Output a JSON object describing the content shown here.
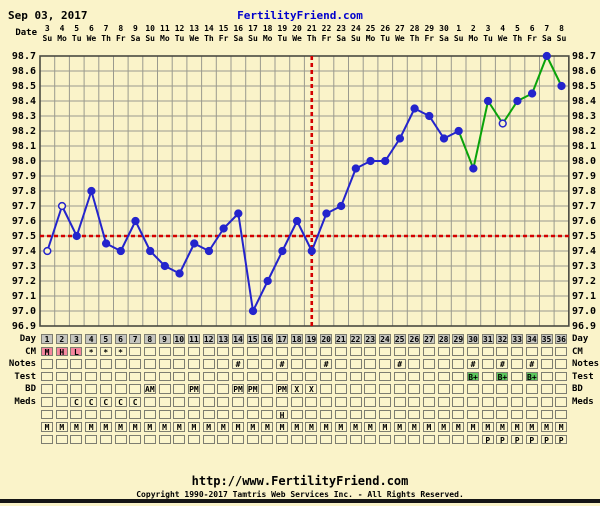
{
  "header": {
    "date": "Sep 03, 2017",
    "site": "FertilityFriend.com"
  },
  "labels": {
    "date_axis": "Date",
    "day_axis": "Day"
  },
  "colors": {
    "background": "#faf3c9",
    "grid": "#9a9a8e",
    "frame": "#4a4a42",
    "line_blue": "#2424cc",
    "line_green": "#0aa30a",
    "coverline_red": "#d40000",
    "title_blue": "#0000cc",
    "day_row_gray": "#c6c6c0",
    "cm_pink": "#f5879f",
    "test_green": "#5cc75c",
    "cell_cream": "#fbf5cc"
  },
  "chart_data": {
    "type": "line",
    "title": "Basal body temperature chart",
    "xlabel": "Cycle day",
    "ylabel": "Temperature (F)",
    "ylim": [
      96.9,
      98.7
    ],
    "ytick_step": 0.1,
    "yticks": [
      "98.7",
      "98.6",
      "98.5",
      "98.4",
      "98.3",
      "98.2",
      "98.1",
      "98.0",
      "97.9",
      "97.8",
      "97.7",
      "97.6",
      "97.5",
      "97.4",
      "97.3",
      "97.2",
      "97.1",
      "97.0",
      "96.9"
    ],
    "dates": [
      "3",
      "4",
      "5",
      "6",
      "7",
      "8",
      "9",
      "10",
      "11",
      "12",
      "13",
      "14",
      "15",
      "16",
      "17",
      "18",
      "19",
      "20",
      "21",
      "22",
      "23",
      "24",
      "25",
      "26",
      "27",
      "28",
      "29",
      "30",
      "1",
      "2",
      "3",
      "4",
      "5",
      "6",
      "7",
      "8"
    ],
    "weekdays": [
      "Su",
      "Mo",
      "Tu",
      "We",
      "Th",
      "Fr",
      "Sa",
      "Su",
      "Mo",
      "Tu",
      "We",
      "Th",
      "Fr",
      "Sa",
      "Su",
      "Mo",
      "Tu",
      "We",
      "Th",
      "Fr",
      "Sa",
      "Su",
      "Mo",
      "Tu",
      "We",
      "Th",
      "Fr",
      "Sa",
      "Su",
      "Mo",
      "Tu",
      "We",
      "Th",
      "Fr",
      "Sa",
      "Su"
    ],
    "series": [
      {
        "name": "BBT",
        "values": [
          97.4,
          97.7,
          97.5,
          97.8,
          97.45,
          97.4,
          97.6,
          97.4,
          97.3,
          97.25,
          97.45,
          97.4,
          97.55,
          97.65,
          97.0,
          97.2,
          97.4,
          97.6,
          97.4,
          97.65,
          97.7,
          97.95,
          98.0,
          98.0,
          98.15,
          98.35,
          98.3,
          98.15,
          98.2,
          97.95,
          98.4,
          98.25,
          98.4,
          98.45,
          98.7,
          98.5
        ]
      }
    ],
    "open_circle_days": [
      1,
      2,
      32
    ],
    "green_line_from_day": 29,
    "coverline_temp": 97.5,
    "vertical_line_day": 19,
    "grid": true,
    "legend": false
  },
  "table": {
    "day_numbers": [
      "1",
      "2",
      "3",
      "4",
      "5",
      "6",
      "7",
      "8",
      "9",
      "10",
      "11",
      "12",
      "13",
      "14",
      "15",
      "16",
      "17",
      "18",
      "19",
      "20",
      "21",
      "22",
      "23",
      "24",
      "25",
      "26",
      "27",
      "28",
      "29",
      "30",
      "31",
      "32",
      "33",
      "34",
      "35",
      "36"
    ],
    "rows": [
      {
        "key": "day",
        "label": "Day",
        "type": "daynum"
      },
      {
        "key": "cm",
        "label": "CM",
        "type": "marks",
        "marks": {
          "1": "M",
          "2": "H",
          "3": "L",
          "4": "*",
          "5": "*",
          "6": "*"
        },
        "mark_bg": {
          "1": "cm_pink",
          "2": "cm_pink",
          "3": "cm_pink"
        }
      },
      {
        "key": "notes",
        "label": "Notes",
        "type": "marks",
        "marks": {
          "14": "#",
          "17": "#",
          "20": "#",
          "25": "#",
          "30": "#",
          "32": "#",
          "34": "#"
        }
      },
      {
        "key": "test",
        "label": "Test",
        "type": "marks",
        "marks": {
          "30": "B+",
          "32": "B+",
          "34": "B+"
        },
        "mark_bg": {
          "30": "test_green",
          "32": "test_green",
          "34": "test_green"
        }
      },
      {
        "key": "bd",
        "label": "BD",
        "type": "marks",
        "marks": {
          "8": "AM",
          "11": "PM",
          "14": "PM",
          "15": "PM",
          "17": "PM",
          "18": "X",
          "19": "X"
        }
      },
      {
        "key": "meds",
        "label": "Meds",
        "type": "marks",
        "marks": {
          "3": "C",
          "4": "C",
          "5": "C",
          "6": "C",
          "7": "C"
        }
      },
      {
        "key": "extra1",
        "label": "",
        "type": "marks",
        "marks": {
          "17": "H"
        }
      },
      {
        "key": "extra2",
        "label": "",
        "type": "all",
        "all": "M"
      },
      {
        "key": "extra3",
        "label": "",
        "type": "marks",
        "marks": {
          "31": "P",
          "32": "P",
          "33": "P",
          "34": "P",
          "35": "P",
          "36": "P"
        }
      }
    ]
  },
  "footer": {
    "url": "http://www.FertilityFriend.com",
    "copyright": "Copyright 1990-2017 Tamtris Web Services Inc. - All Rights Reserved."
  }
}
